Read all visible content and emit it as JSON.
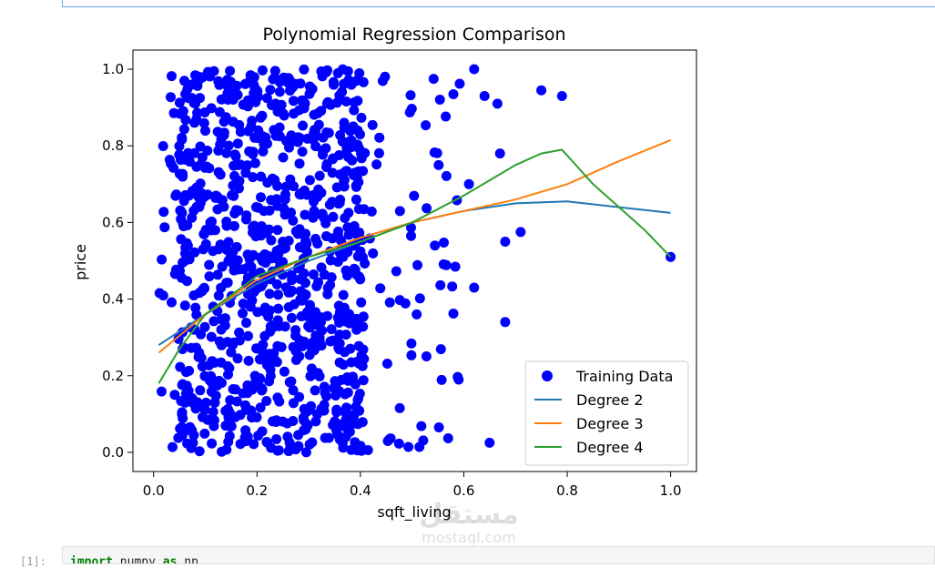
{
  "chart_data": {
    "type": "scatter",
    "title": "Polynomial Regression Comparison",
    "xlabel": "sqft_living",
    "ylabel": "price",
    "xlim": [
      -0.04,
      1.05
    ],
    "ylim": [
      -0.05,
      1.05
    ],
    "xticks": [
      0.0,
      0.2,
      0.4,
      0.6,
      0.8,
      1.0
    ],
    "xtick_labels": [
      "0.0",
      "0.2",
      "0.4",
      "0.6",
      "0.8",
      "1.0"
    ],
    "yticks": [
      0.0,
      0.2,
      0.4,
      0.6,
      0.8,
      1.0
    ],
    "ytick_labels": [
      "0.0",
      "0.2",
      "0.4",
      "0.6",
      "0.8",
      "1.0"
    ],
    "legend": {
      "position": "lower-right",
      "entries": [
        "Training Data",
        "Degree 2",
        "Degree 3",
        "Degree 4"
      ]
    },
    "scatter": {
      "name": "Training Data",
      "color": "#0000ff",
      "sample_size": 1000,
      "x_range": [
        0.01,
        1.0
      ],
      "y_range": [
        0.0,
        1.0
      ],
      "outliers": [
        [
          1.0,
          0.51
        ],
        [
          0.79,
          0.93
        ],
        [
          0.75,
          0.945
        ],
        [
          0.65,
          0.025
        ],
        [
          0.59,
          0.19
        ],
        [
          0.68,
          0.34
        ],
        [
          0.62,
          1.0
        ],
        [
          0.68,
          0.55
        ],
        [
          0.71,
          0.575
        ],
        [
          0.67,
          0.78
        ],
        [
          0.665,
          0.91
        ],
        [
          0.64,
          0.93
        ],
        [
          0.61,
          0.7
        ],
        [
          0.62,
          0.43
        ]
      ]
    },
    "series": [
      {
        "name": "Degree 2",
        "color": "#1f77b4",
        "x": [
          0.01,
          0.1,
          0.2,
          0.3,
          0.4,
          0.5,
          0.6,
          0.7,
          0.8,
          0.9,
          1.0
        ],
        "y": [
          0.28,
          0.36,
          0.44,
          0.5,
          0.55,
          0.6,
          0.63,
          0.65,
          0.655,
          0.64,
          0.625
        ]
      },
      {
        "name": "Degree 3",
        "color": "#ff7f0e",
        "x": [
          0.01,
          0.1,
          0.2,
          0.3,
          0.4,
          0.5,
          0.6,
          0.7,
          0.8,
          0.9,
          1.0
        ],
        "y": [
          0.26,
          0.36,
          0.45,
          0.51,
          0.56,
          0.6,
          0.63,
          0.66,
          0.7,
          0.76,
          0.815
        ]
      },
      {
        "name": "Degree 4",
        "color": "#2ca02c",
        "x": [
          0.01,
          0.05,
          0.1,
          0.2,
          0.3,
          0.4,
          0.5,
          0.6,
          0.7,
          0.75,
          0.79,
          0.85,
          0.95,
          1.0
        ],
        "y": [
          0.18,
          0.27,
          0.36,
          0.46,
          0.51,
          0.55,
          0.6,
          0.67,
          0.75,
          0.78,
          0.79,
          0.7,
          0.58,
          0.51
        ]
      }
    ]
  },
  "code": {
    "prompt": "[1]:",
    "keyword1": "import",
    "module": " numpy ",
    "keyword2": "as",
    "alias": " np"
  },
  "watermark": {
    "arabic": "مستقل",
    "latin": "mostaql.com"
  }
}
